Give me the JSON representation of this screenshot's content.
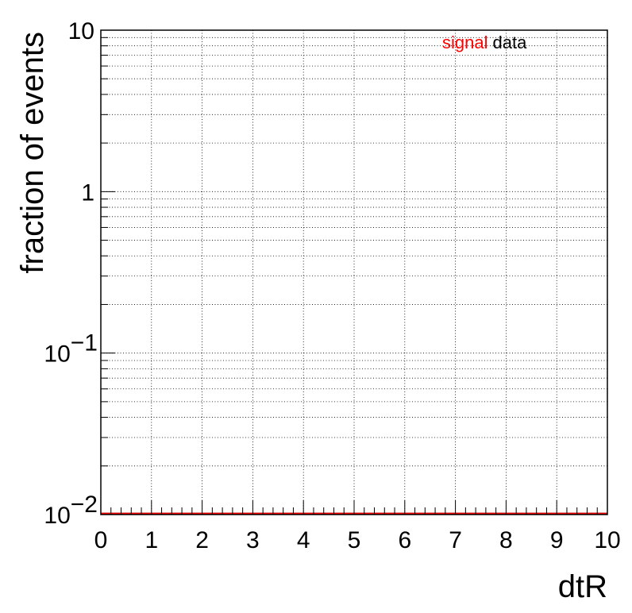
{
  "chart_data": {
    "type": "line",
    "xlabel": "dtR",
    "ylabel": "fraction of events",
    "xlim": [
      0,
      10
    ],
    "ylim": [
      0.01,
      10
    ],
    "yscale": "log",
    "grid": true,
    "legend_position": "top-right",
    "x_ticks": [
      "0",
      "1",
      "2",
      "3",
      "4",
      "5",
      "6",
      "7",
      "8",
      "9",
      "10"
    ],
    "y_ticks": [
      {
        "base": "10",
        "exp": "−2",
        "value": 0.01
      },
      {
        "base": "10",
        "exp": "−1",
        "value": 0.1
      },
      {
        "base": "1",
        "exp": "",
        "value": 1
      },
      {
        "base": "10",
        "exp": "",
        "value": 10
      }
    ],
    "series": [
      {
        "name": "signal",
        "color": "#ff0000",
        "x": [
          0,
          10
        ],
        "values": [
          0.01,
          0.01
        ]
      },
      {
        "name": "data",
        "color": "#000000",
        "x": [
          0,
          10
        ],
        "values": [
          0.01,
          0.01
        ]
      }
    ]
  }
}
